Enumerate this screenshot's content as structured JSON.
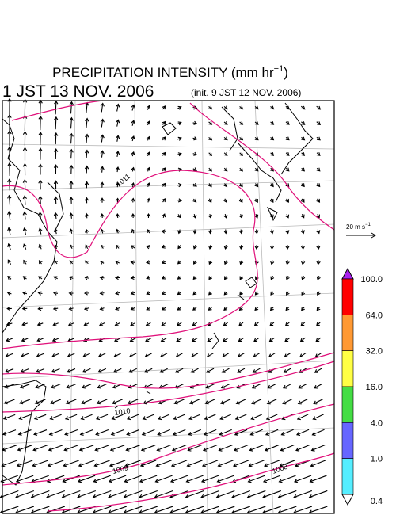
{
  "header": {
    "title": "PRECIPITATION INTENSITY (mm hr",
    "title_exponent": "−1",
    "title_close": ")",
    "valid_time": "1 JST 13 NOV. 2006",
    "init_time": "(init. 9 JST 12 NOV. 2006)"
  },
  "reference_vector": {
    "label": "20 m s",
    "exponent": "−1"
  },
  "colorbar": {
    "labels": [
      "100.0",
      "64.0",
      "32.0",
      "16.0",
      "4.0",
      "1.0",
      "0.4"
    ],
    "colors": [
      "#ff0000",
      "#ff9933",
      "#ffff44",
      "#44dd44",
      "#6666ff",
      "#55eeff"
    ],
    "over_color": "#aa22ee",
    "under_color": "#ffffff"
  },
  "isobars": [
    {
      "label": "1011"
    },
    {
      "label": "1010"
    },
    {
      "label": "1009"
    },
    {
      "label": "1008"
    }
  ]
}
